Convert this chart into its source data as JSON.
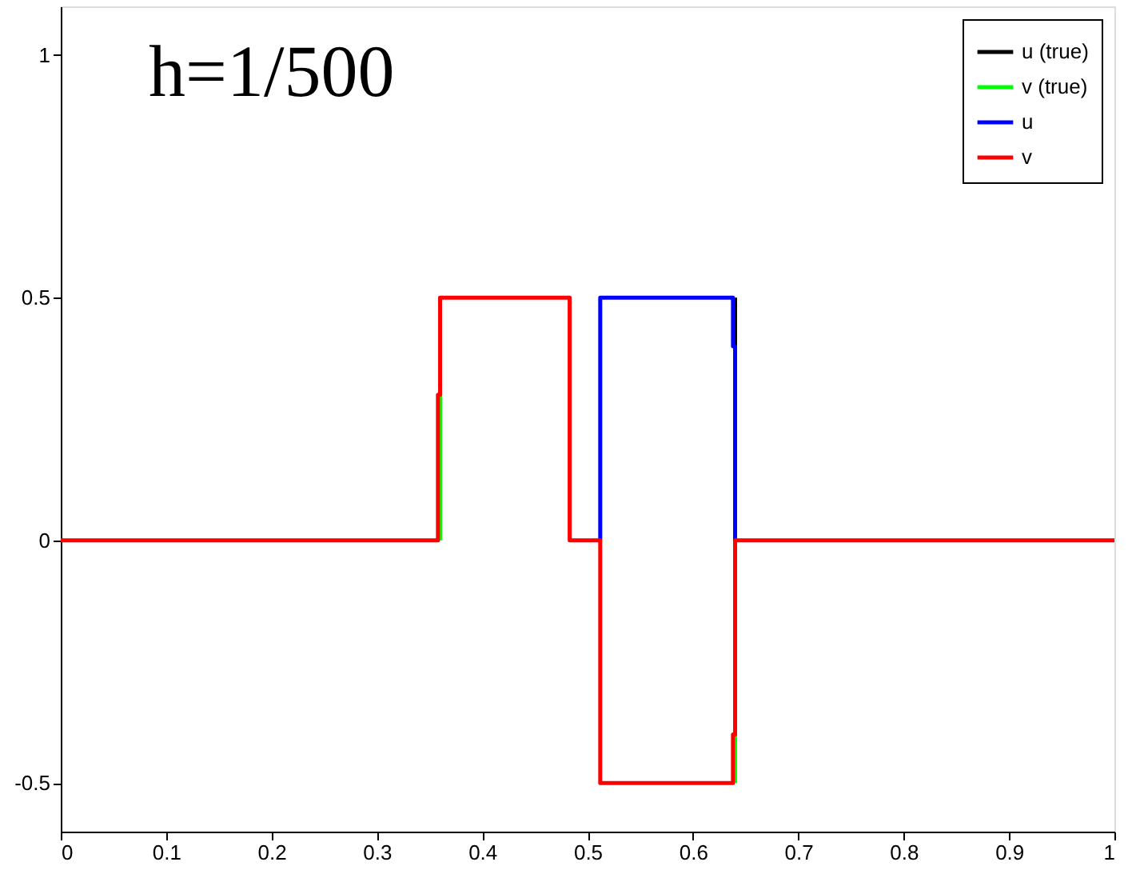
{
  "chart_data": {
    "type": "line",
    "annotations": [
      "h=1/500"
    ],
    "xlim": [
      0,
      1
    ],
    "ylim": [
      -0.6,
      1.1
    ],
    "xticks": [
      0,
      0.1,
      0.2,
      0.3,
      0.4,
      0.5,
      0.6,
      0.7,
      0.8,
      0.9,
      1
    ],
    "yticks": [
      -0.5,
      0,
      0.5,
      1
    ],
    "grid": false,
    "legend": "top right",
    "marker": "none",
    "line_style": "solid",
    "series": [
      {
        "name": "u (true)",
        "color": "#000000",
        "x": [
          0.64,
          0.64
        ],
        "values": [
          0.5,
          0.4
        ]
      },
      {
        "name": " v (true)",
        "color": "#00ff00",
        "x": [
          0.36,
          0.36,
          0.5,
          0.64,
          0.64
        ],
        "values": [
          0,
          0.3,
          null,
          -0.5,
          -0.4
        ]
      },
      {
        "name": "u",
        "color": "#0000ff",
        "x": [
          0.512,
          0.512,
          0.638,
          0.638,
          0.64,
          0.64
        ],
        "values": [
          0,
          0.5,
          0.5,
          0.4,
          0.4,
          0
        ]
      },
      {
        "name": "v",
        "color": "#ff0000",
        "x": [
          0,
          0.358,
          0.358,
          0.36,
          0.36,
          0.483,
          0.483,
          0.512,
          0.512,
          0.638,
          0.638,
          0.64,
          0.64,
          1
        ],
        "values": [
          0,
          0,
          0.3,
          0.3,
          0.5,
          0.5,
          0,
          0,
          -0.5,
          -0.5,
          -0.4,
          -0.4,
          0,
          0
        ]
      }
    ]
  }
}
